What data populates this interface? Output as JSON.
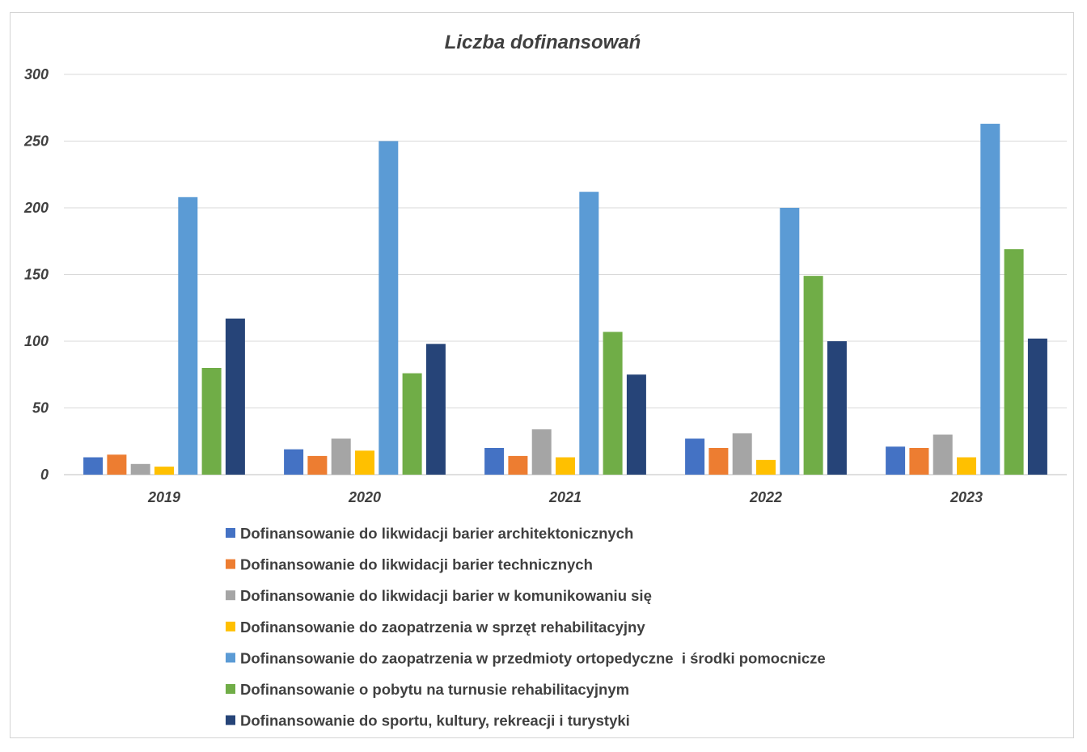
{
  "chart_data": {
    "type": "bar",
    "title": "Liczba dofinansowań",
    "xlabel": "",
    "ylabel": "",
    "ylim": [
      0,
      300
    ],
    "yticks": [
      0,
      50,
      100,
      150,
      200,
      250,
      300
    ],
    "grid": true,
    "legend_position": "bottom",
    "categories": [
      "2019",
      "2020",
      "2021",
      "2022",
      "2023"
    ],
    "series": [
      {
        "name": "Dofinansowanie do likwidacji barier architektonicznych",
        "color": "#4472c4",
        "values": [
          13,
          19,
          20,
          27,
          21
        ]
      },
      {
        "name": "Dofinansowanie do likwidacji barier technicznych",
        "color": "#ed7d31",
        "values": [
          15,
          14,
          14,
          20,
          20
        ]
      },
      {
        "name": "Dofinansowanie do likwidacji barier w komunikowaniu się",
        "color": "#a5a5a5",
        "values": [
          8,
          27,
          34,
          31,
          30
        ]
      },
      {
        "name": "Dofinansowanie do zaopatrzenia w sprzęt rehabilitacyjny",
        "color": "#ffc000",
        "values": [
          6,
          18,
          13,
          11,
          13
        ]
      },
      {
        "name": "Dofinansowanie do zaopatrzenia w przedmioty ortopedyczne  i środki pomocnicze",
        "color": "#5b9bd5",
        "values": [
          208,
          250,
          212,
          200,
          263
        ]
      },
      {
        "name": "Dofinansowanie o pobytu na turnusie rehabilitacyjnym",
        "color": "#70ad47",
        "values": [
          80,
          76,
          107,
          149,
          169
        ]
      },
      {
        "name": "Dofinansowanie do sportu, kultury, rekreacji i turystyki",
        "color": "#264478",
        "values": [
          117,
          98,
          75,
          100,
          102
        ]
      }
    ]
  }
}
